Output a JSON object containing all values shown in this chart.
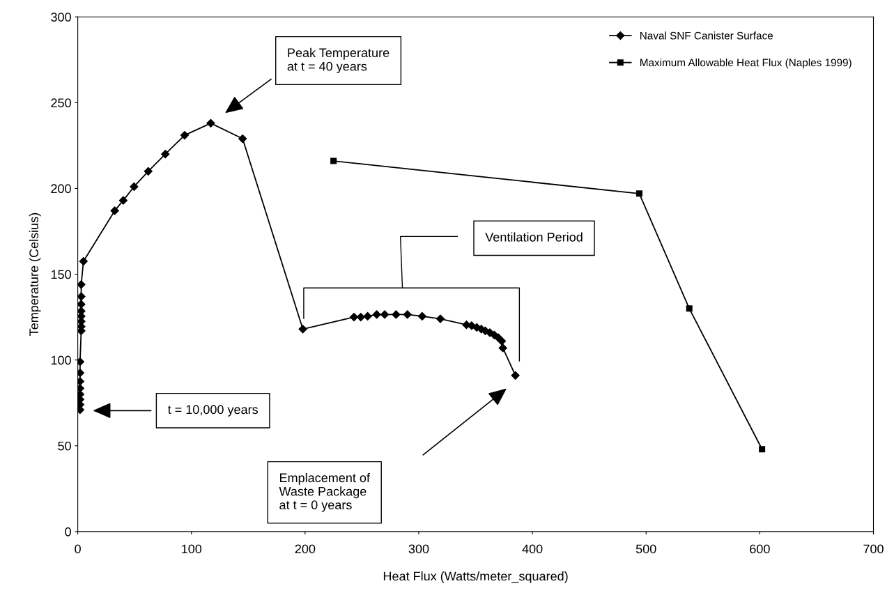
{
  "chart_data": {
    "type": "line",
    "xlabel": "Heat Flux (Watts/meter_squared)",
    "ylabel": "Temperature (Celsius)",
    "xlim": [
      0,
      700
    ],
    "xticks": [
      0,
      100,
      200,
      300,
      400,
      500,
      600,
      700
    ],
    "ylim": [
      0,
      300
    ],
    "yticks": [
      0,
      50,
      100,
      150,
      200,
      250,
      300
    ],
    "grid": false,
    "legend": "top right",
    "series": [
      {
        "name": "Naval SNF Canister Surface",
        "color": "#000000",
        "marker": "diamond",
        "line_style": "solid",
        "x": [
          385,
          374,
          373,
          370,
          366.5,
          362.5,
          358.5,
          355,
          351,
          346.5,
          342,
          319,
          303,
          290,
          280,
          270,
          263,
          255,
          249,
          243,
          198,
          145,
          117,
          94,
          77,
          62,
          49.5,
          40,
          32.5,
          5,
          3,
          3,
          3,
          3,
          3,
          3,
          3,
          3,
          2,
          2,
          2,
          2,
          2,
          2,
          2,
          2
        ],
        "values": [
          91,
          107,
          111,
          113,
          114.5,
          116,
          117,
          118,
          119,
          120,
          120.5,
          124,
          125.5,
          126.5,
          126.5,
          126.5,
          126.5,
          125.5,
          125,
          125,
          118,
          229,
          238,
          231,
          220,
          210,
          201,
          193,
          187,
          157.5,
          144,
          137,
          132.5,
          128.5,
          125.5,
          122.5,
          119.5,
          117,
          99,
          92.5,
          87.5,
          83.5,
          80,
          77,
          74,
          71
        ]
      },
      {
        "name": "Maximum Allowable Heat Flux (Naples 1999)",
        "color": "#000000",
        "marker": "square",
        "line_style": "solid",
        "x": [
          225,
          494,
          538,
          602
        ],
        "values": [
          216,
          197,
          130,
          48
        ]
      }
    ],
    "annotations": [
      "Peak Temperature\nat t = 40 years",
      "Ventilation Period",
      "t = 10,000 years",
      "Emplacement of\nWaste Package\nat t = 0 years"
    ]
  }
}
